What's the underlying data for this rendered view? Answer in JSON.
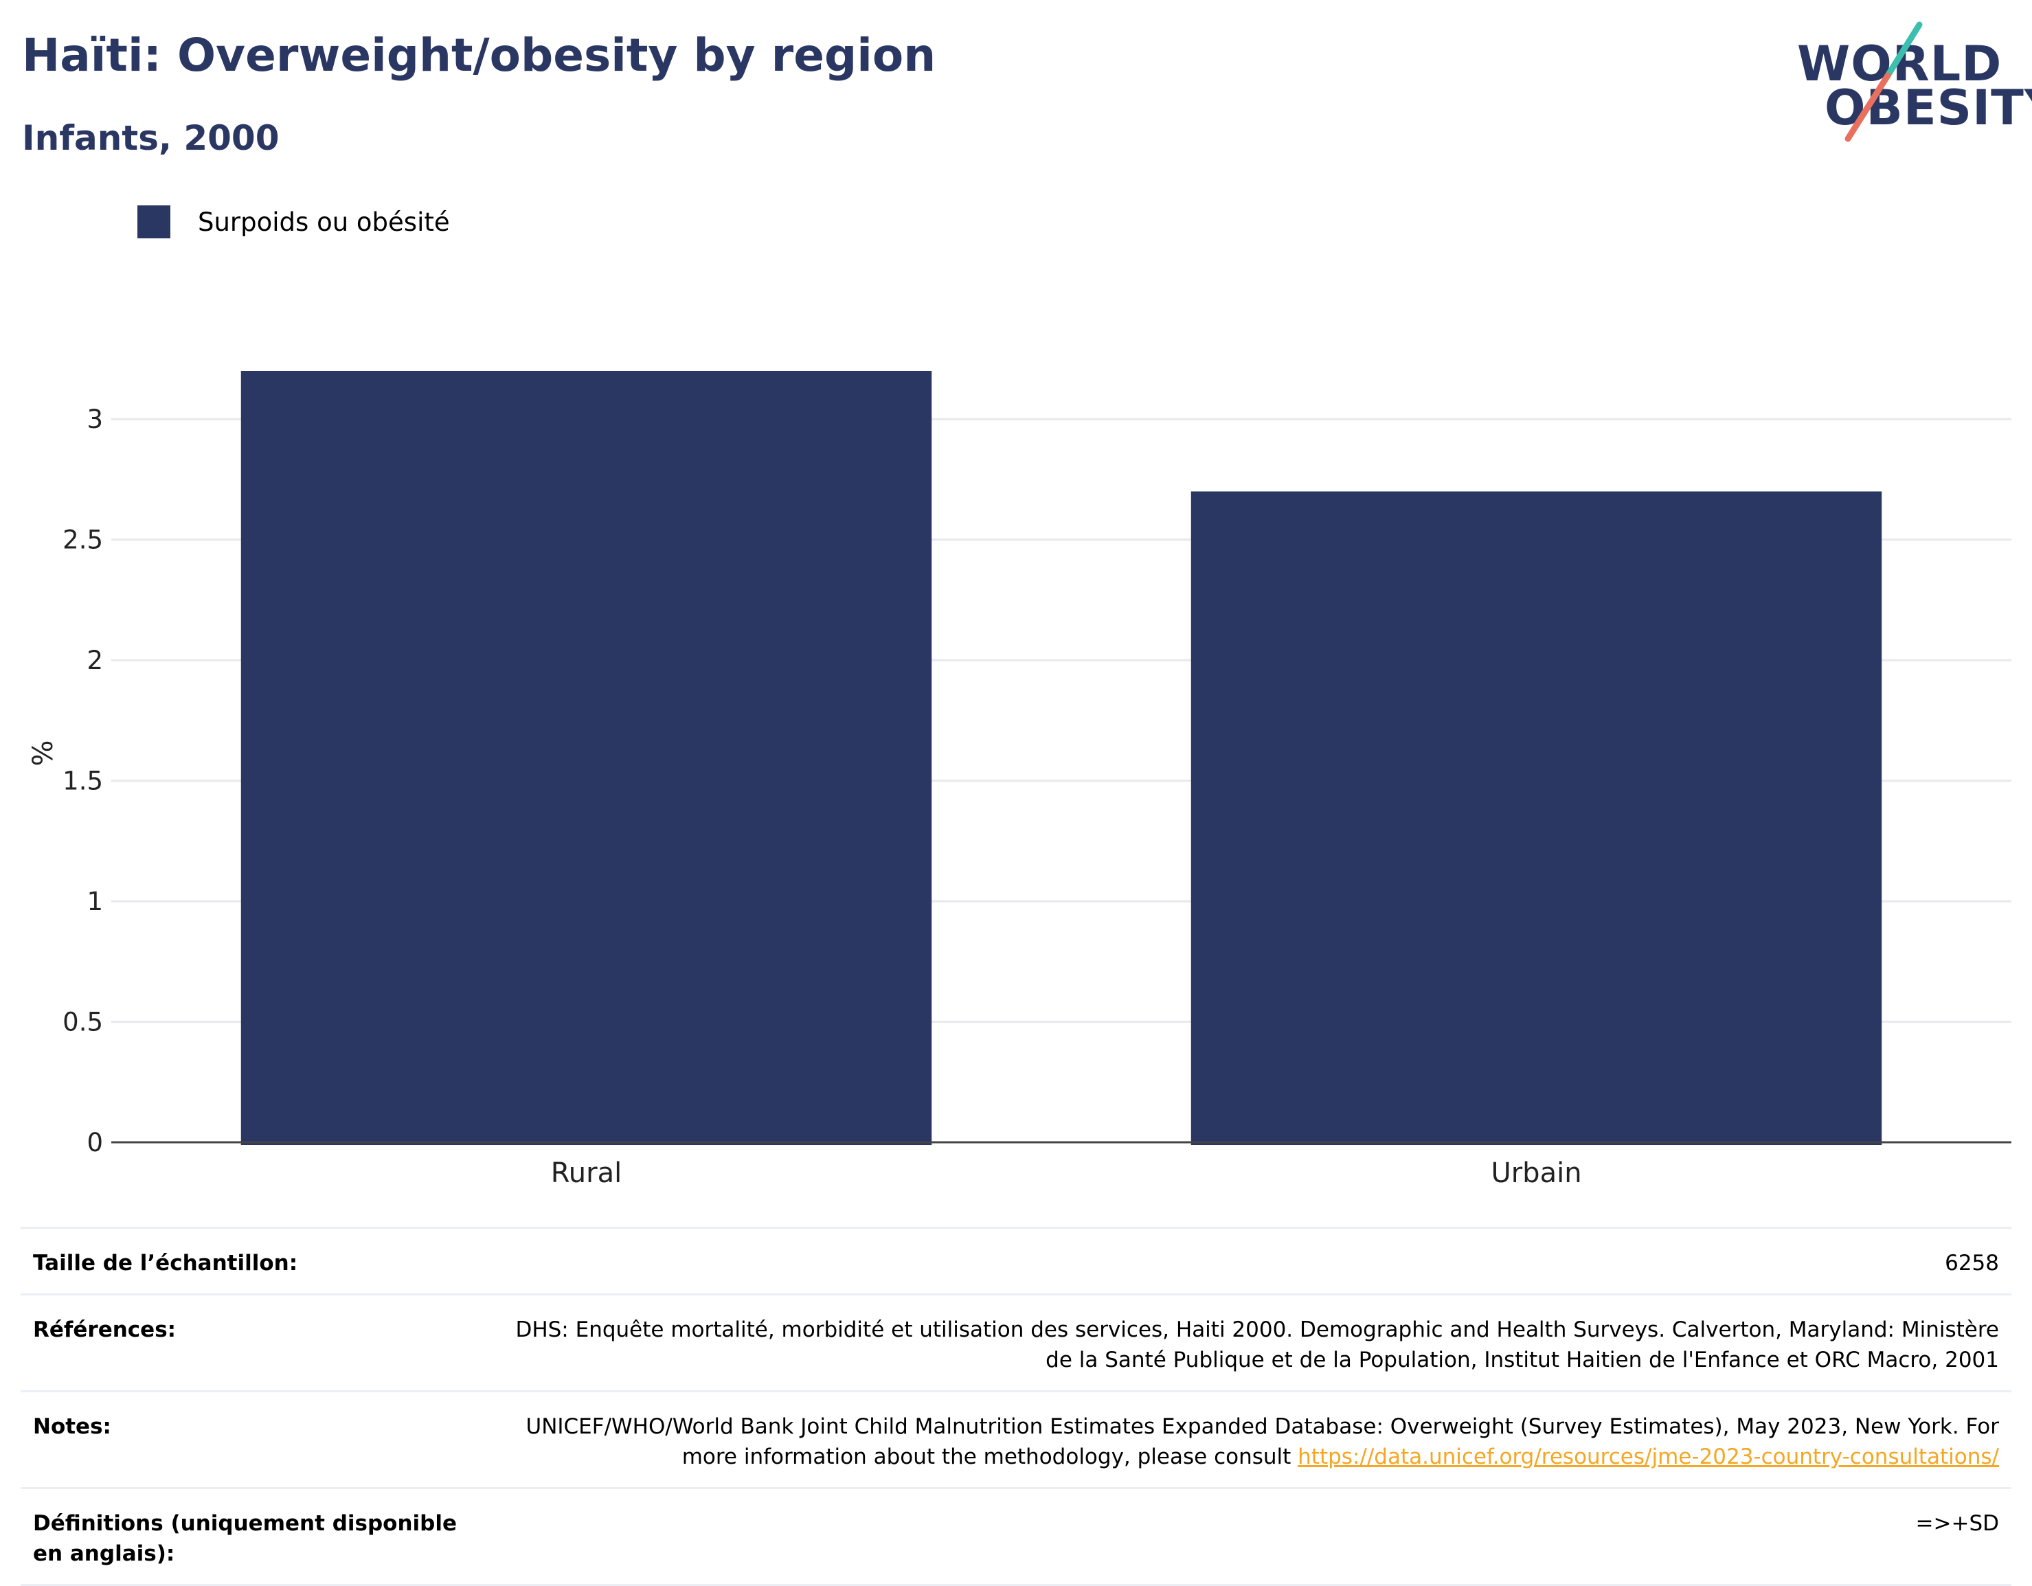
{
  "header": {
    "title": "Haïti: Overweight/obesity by region",
    "subtitle": "Infants, 2000"
  },
  "logo": {
    "line1": "WORLD",
    "line2": "OBESITY",
    "colors": {
      "text": "#2b3763",
      "slash_top": "#3dbfb0",
      "slash_bottom": "#e8705f"
    }
  },
  "colors": {
    "bar": "#2b3763",
    "grid": "#e8e8ee",
    "axis": "#444444",
    "link": "#f5a623"
  },
  "chart_data": {
    "type": "bar",
    "categories": [
      "Rural",
      "Urbain"
    ],
    "series": [
      {
        "name": "Surpoids ou obésité",
        "values": [
          3.2,
          2.7
        ]
      }
    ],
    "ylabel": "%",
    "ylim": [
      0,
      3.2
    ],
    "yticks": [
      0,
      0.5,
      1,
      1.5,
      2,
      2.5,
      3
    ],
    "ytick_labels": [
      "0",
      "0.5",
      "1",
      "1.5",
      "2",
      "2.5",
      "3"
    ],
    "grid": true,
    "legend": "top-left"
  },
  "info": {
    "sample": {
      "label": "Taille de l’échantillon:",
      "value": "6258"
    },
    "references": {
      "label": "Références:",
      "value": "DHS: Enquête mortalité, morbidité et utilisation des services, Haiti 2000. Demographic and Health Surveys. Calverton, Maryland: Ministère de la Santé Publique et de la Population, Institut Haitien de l'Enfance et ORC Macro, 2001"
    },
    "notes": {
      "label": "Notes:",
      "text": "UNICEF/WHO/World Bank Joint Child Malnutrition Estimates Expanded Database: Overweight (Survey Estimates), May 2023, New York. For more information about the methodology, please consult ",
      "link": "https://data.unicef.org/resources/jme-2023-country-consultations/"
    },
    "definitions": {
      "label": "Définitions (uniquement disponible en anglais):",
      "value": "=>+SD"
    }
  }
}
